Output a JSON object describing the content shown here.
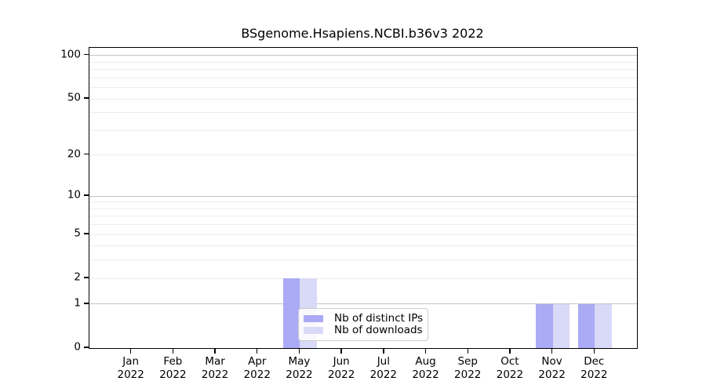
{
  "chart_data": {
    "type": "bar",
    "title": "BSgenome.Hsapiens.NCBI.b36v3 2022",
    "categories": [
      {
        "month": "Jan",
        "year": "2022"
      },
      {
        "month": "Feb",
        "year": "2022"
      },
      {
        "month": "Mar",
        "year": "2022"
      },
      {
        "month": "Apr",
        "year": "2022"
      },
      {
        "month": "May",
        "year": "2022"
      },
      {
        "month": "Jun",
        "year": "2022"
      },
      {
        "month": "Jul",
        "year": "2022"
      },
      {
        "month": "Aug",
        "year": "2022"
      },
      {
        "month": "Sep",
        "year": "2022"
      },
      {
        "month": "Oct",
        "year": "2022"
      },
      {
        "month": "Nov",
        "year": "2022"
      },
      {
        "month": "Dec",
        "year": "2022"
      }
    ],
    "series": [
      {
        "name": "Nb of distinct IPs",
        "color": "#aaaaf5",
        "values": [
          0,
          0,
          0,
          0,
          2,
          0,
          0,
          0,
          0,
          0,
          1,
          1
        ]
      },
      {
        "name": "Nb of downloads",
        "color": "#d9d9f8",
        "values": [
          0,
          0,
          0,
          0,
          2,
          0,
          0,
          0,
          0,
          0,
          1,
          1
        ]
      }
    ],
    "yscale": "log1p",
    "ylim": [
      0,
      113
    ],
    "y_ticks": [
      100,
      50,
      20,
      10,
      5,
      2,
      1,
      0
    ],
    "y_gridlines_major": [
      1,
      10,
      100
    ],
    "y_gridlines_minor": [
      2,
      3,
      4,
      5,
      6,
      7,
      8,
      9,
      20,
      30,
      40,
      50,
      60,
      70,
      80,
      90
    ],
    "grid": "horizontal",
    "legend_position": "lower center"
  },
  "colors": {
    "grid_major": "#c4c4c4",
    "grid_minor": "#ededed",
    "spine": "#000000",
    "background": "#ffffff"
  }
}
